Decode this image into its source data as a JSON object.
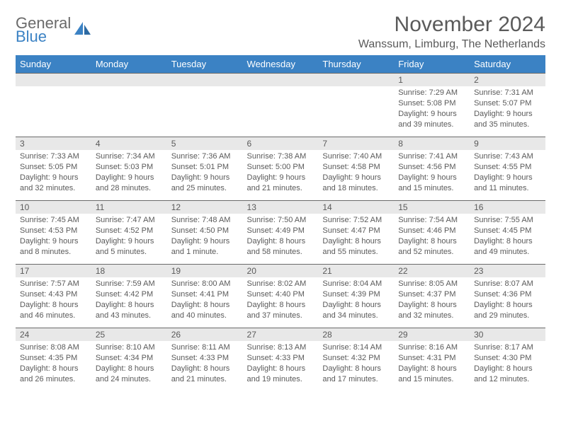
{
  "logo": {
    "line1": "General",
    "line2": "Blue",
    "color_general": "#6a6a6a",
    "color_blue": "#3b82c4"
  },
  "title": "November 2024",
  "location": "Wanssum, Limburg, The Netherlands",
  "header_bg": "#3b82c4",
  "header_fg": "#ffffff",
  "dayheader_bg": "#e8e8e8",
  "border_color": "#6a6a6a",
  "text_color": "#5a5a5a",
  "background": "#ffffff",
  "weekdays": [
    "Sunday",
    "Monday",
    "Tuesday",
    "Wednesday",
    "Thursday",
    "Friday",
    "Saturday"
  ],
  "weeks": [
    [
      {
        "day": "",
        "sunrise": "",
        "sunset": "",
        "daylight": ""
      },
      {
        "day": "",
        "sunrise": "",
        "sunset": "",
        "daylight": ""
      },
      {
        "day": "",
        "sunrise": "",
        "sunset": "",
        "daylight": ""
      },
      {
        "day": "",
        "sunrise": "",
        "sunset": "",
        "daylight": ""
      },
      {
        "day": "",
        "sunrise": "",
        "sunset": "",
        "daylight": ""
      },
      {
        "day": "1",
        "sunrise": "Sunrise: 7:29 AM",
        "sunset": "Sunset: 5:08 PM",
        "daylight": "Daylight: 9 hours and 39 minutes."
      },
      {
        "day": "2",
        "sunrise": "Sunrise: 7:31 AM",
        "sunset": "Sunset: 5:07 PM",
        "daylight": "Daylight: 9 hours and 35 minutes."
      }
    ],
    [
      {
        "day": "3",
        "sunrise": "Sunrise: 7:33 AM",
        "sunset": "Sunset: 5:05 PM",
        "daylight": "Daylight: 9 hours and 32 minutes."
      },
      {
        "day": "4",
        "sunrise": "Sunrise: 7:34 AM",
        "sunset": "Sunset: 5:03 PM",
        "daylight": "Daylight: 9 hours and 28 minutes."
      },
      {
        "day": "5",
        "sunrise": "Sunrise: 7:36 AM",
        "sunset": "Sunset: 5:01 PM",
        "daylight": "Daylight: 9 hours and 25 minutes."
      },
      {
        "day": "6",
        "sunrise": "Sunrise: 7:38 AM",
        "sunset": "Sunset: 5:00 PM",
        "daylight": "Daylight: 9 hours and 21 minutes."
      },
      {
        "day": "7",
        "sunrise": "Sunrise: 7:40 AM",
        "sunset": "Sunset: 4:58 PM",
        "daylight": "Daylight: 9 hours and 18 minutes."
      },
      {
        "day": "8",
        "sunrise": "Sunrise: 7:41 AM",
        "sunset": "Sunset: 4:56 PM",
        "daylight": "Daylight: 9 hours and 15 minutes."
      },
      {
        "day": "9",
        "sunrise": "Sunrise: 7:43 AM",
        "sunset": "Sunset: 4:55 PM",
        "daylight": "Daylight: 9 hours and 11 minutes."
      }
    ],
    [
      {
        "day": "10",
        "sunrise": "Sunrise: 7:45 AM",
        "sunset": "Sunset: 4:53 PM",
        "daylight": "Daylight: 9 hours and 8 minutes."
      },
      {
        "day": "11",
        "sunrise": "Sunrise: 7:47 AM",
        "sunset": "Sunset: 4:52 PM",
        "daylight": "Daylight: 9 hours and 5 minutes."
      },
      {
        "day": "12",
        "sunrise": "Sunrise: 7:48 AM",
        "sunset": "Sunset: 4:50 PM",
        "daylight": "Daylight: 9 hours and 1 minute."
      },
      {
        "day": "13",
        "sunrise": "Sunrise: 7:50 AM",
        "sunset": "Sunset: 4:49 PM",
        "daylight": "Daylight: 8 hours and 58 minutes."
      },
      {
        "day": "14",
        "sunrise": "Sunrise: 7:52 AM",
        "sunset": "Sunset: 4:47 PM",
        "daylight": "Daylight: 8 hours and 55 minutes."
      },
      {
        "day": "15",
        "sunrise": "Sunrise: 7:54 AM",
        "sunset": "Sunset: 4:46 PM",
        "daylight": "Daylight: 8 hours and 52 minutes."
      },
      {
        "day": "16",
        "sunrise": "Sunrise: 7:55 AM",
        "sunset": "Sunset: 4:45 PM",
        "daylight": "Daylight: 8 hours and 49 minutes."
      }
    ],
    [
      {
        "day": "17",
        "sunrise": "Sunrise: 7:57 AM",
        "sunset": "Sunset: 4:43 PM",
        "daylight": "Daylight: 8 hours and 46 minutes."
      },
      {
        "day": "18",
        "sunrise": "Sunrise: 7:59 AM",
        "sunset": "Sunset: 4:42 PM",
        "daylight": "Daylight: 8 hours and 43 minutes."
      },
      {
        "day": "19",
        "sunrise": "Sunrise: 8:00 AM",
        "sunset": "Sunset: 4:41 PM",
        "daylight": "Daylight: 8 hours and 40 minutes."
      },
      {
        "day": "20",
        "sunrise": "Sunrise: 8:02 AM",
        "sunset": "Sunset: 4:40 PM",
        "daylight": "Daylight: 8 hours and 37 minutes."
      },
      {
        "day": "21",
        "sunrise": "Sunrise: 8:04 AM",
        "sunset": "Sunset: 4:39 PM",
        "daylight": "Daylight: 8 hours and 34 minutes."
      },
      {
        "day": "22",
        "sunrise": "Sunrise: 8:05 AM",
        "sunset": "Sunset: 4:37 PM",
        "daylight": "Daylight: 8 hours and 32 minutes."
      },
      {
        "day": "23",
        "sunrise": "Sunrise: 8:07 AM",
        "sunset": "Sunset: 4:36 PM",
        "daylight": "Daylight: 8 hours and 29 minutes."
      }
    ],
    [
      {
        "day": "24",
        "sunrise": "Sunrise: 8:08 AM",
        "sunset": "Sunset: 4:35 PM",
        "daylight": "Daylight: 8 hours and 26 minutes."
      },
      {
        "day": "25",
        "sunrise": "Sunrise: 8:10 AM",
        "sunset": "Sunset: 4:34 PM",
        "daylight": "Daylight: 8 hours and 24 minutes."
      },
      {
        "day": "26",
        "sunrise": "Sunrise: 8:11 AM",
        "sunset": "Sunset: 4:33 PM",
        "daylight": "Daylight: 8 hours and 21 minutes."
      },
      {
        "day": "27",
        "sunrise": "Sunrise: 8:13 AM",
        "sunset": "Sunset: 4:33 PM",
        "daylight": "Daylight: 8 hours and 19 minutes."
      },
      {
        "day": "28",
        "sunrise": "Sunrise: 8:14 AM",
        "sunset": "Sunset: 4:32 PM",
        "daylight": "Daylight: 8 hours and 17 minutes."
      },
      {
        "day": "29",
        "sunrise": "Sunrise: 8:16 AM",
        "sunset": "Sunset: 4:31 PM",
        "daylight": "Daylight: 8 hours and 15 minutes."
      },
      {
        "day": "30",
        "sunrise": "Sunrise: 8:17 AM",
        "sunset": "Sunset: 4:30 PM",
        "daylight": "Daylight: 8 hours and 12 minutes."
      }
    ]
  ]
}
